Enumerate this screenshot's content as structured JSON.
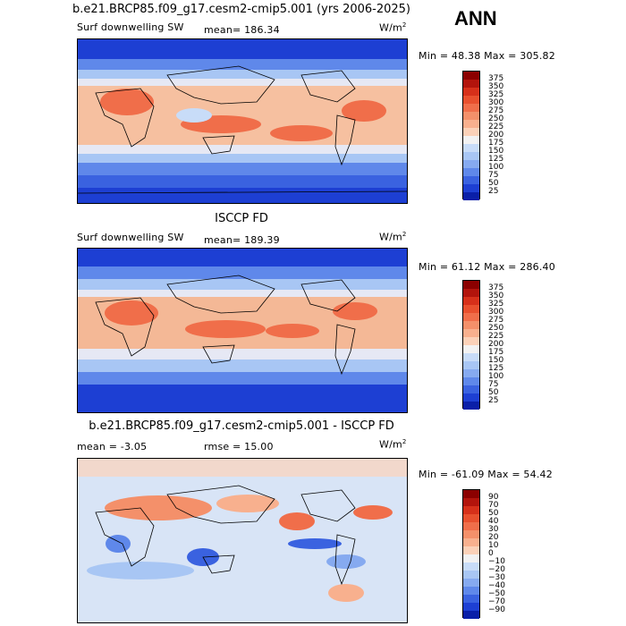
{
  "season": "ANN",
  "units_base": "W/m",
  "units_exp": "2",
  "panels": [
    {
      "title": "b.e21.BRCP85.f09_g17.cesm2-cmip5.001 (yrs 2006-2025)",
      "left_label": "Surf downwelling SW",
      "stat_label": "mean= 186.34",
      "minmax": "Min =  48.38 Max = 305.82",
      "cbar_labels": [
        "375",
        "350",
        "325",
        "300",
        "275",
        "250",
        "225",
        "200",
        "175",
        "150",
        "125",
        "100",
        "75",
        "50",
        "25"
      ],
      "cbar_colors": [
        "#8b0000",
        "#b2140c",
        "#d6301a",
        "#e8502e",
        "#f06e4a",
        "#f4906a",
        "#f8b08e",
        "#fbd1b8",
        "#f2f2f2",
        "#c8dcf8",
        "#a8c6f4",
        "#86aaf0",
        "#5f88ea",
        "#3a62e0",
        "#1d3fd3",
        "#0a1fa8"
      ]
    },
    {
      "title": "ISCCP FD",
      "left_label": "Surf downwelling SW",
      "stat_label": "mean= 189.39",
      "minmax": "Min =  61.12 Max = 286.40",
      "cbar_labels": [
        "375",
        "350",
        "325",
        "300",
        "275",
        "250",
        "225",
        "200",
        "175",
        "150",
        "125",
        "100",
        "75",
        "50",
        "25"
      ],
      "cbar_colors": [
        "#8b0000",
        "#b2140c",
        "#d6301a",
        "#e8502e",
        "#f06e4a",
        "#f4906a",
        "#f8b08e",
        "#fbd1b8",
        "#f2f2f2",
        "#c8dcf8",
        "#a8c6f4",
        "#86aaf0",
        "#5f88ea",
        "#3a62e0",
        "#1d3fd3",
        "#0a1fa8"
      ]
    },
    {
      "title": "b.e21.BRCP85.f09_g17.cesm2-cmip5.001 - ISCCP FD",
      "left_label": "mean =  -3.05",
      "stat_label": "rmse =  15.00",
      "minmax": "Min = -61.09 Max =  54.42",
      "cbar_labels": [
        "90",
        "70",
        "50",
        "40",
        "30",
        "20",
        "10",
        "0",
        "−10",
        "−20",
        "−30",
        "−40",
        "−50",
        "−70",
        "−90"
      ],
      "cbar_colors": [
        "#8b0000",
        "#b2140c",
        "#d6301a",
        "#e8502e",
        "#f06e4a",
        "#f4906a",
        "#f8b08e",
        "#fbd1b8",
        "#f2f2f2",
        "#c8dcf8",
        "#a8c6f4",
        "#86aaf0",
        "#5f88ea",
        "#3a62e0",
        "#1d3fd3",
        "#0a1fa8"
      ]
    }
  ]
}
